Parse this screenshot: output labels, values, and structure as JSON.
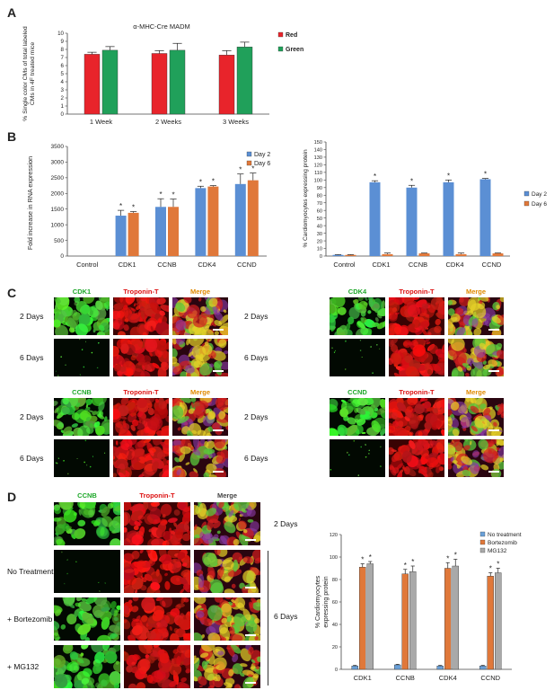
{
  "panels": {
    "a": "A",
    "b": "B",
    "c": "C",
    "d": "D"
  },
  "colors": {
    "red": "#e8242b",
    "green": "#20a05a",
    "blue": "#5b8fd4",
    "orange": "#e0783a",
    "gray": "#a9a9a9",
    "lightblue": "#6aa0d8"
  },
  "chart_a": {
    "type": "bar",
    "title": "α-MHC-Cre MADM",
    "ylabel": "% Single color CMs of total labeled CMs in 4F treated mice",
    "categories": [
      "1 Week",
      "2 Weeks",
      "3 Weeks"
    ],
    "ylim": [
      0,
      10
    ],
    "yticks": [
      "0",
      "1",
      "2",
      "3",
      "4",
      "5",
      "6",
      "7",
      "8",
      "9",
      "10"
    ],
    "series": [
      {
        "name": "Red",
        "values": [
          7.4,
          7.5,
          7.3
        ],
        "errors": [
          0.25,
          0.35,
          0.55
        ]
      },
      {
        "name": "Green",
        "values": [
          7.9,
          7.9,
          8.3
        ],
        "errors": [
          0.45,
          0.85,
          0.6
        ]
      }
    ],
    "legend_position": "right"
  },
  "chart_b1": {
    "type": "bar",
    "ylabel": "Fold increase in RNA expression",
    "categories": [
      "Control",
      "CDK1",
      "CCNB",
      "CDK4",
      "CCND"
    ],
    "ylim": [
      0,
      3500
    ],
    "yticks": [
      "0",
      "500",
      "1000",
      "1500",
      "2000",
      "2500",
      "3000",
      "3500"
    ],
    "series": [
      {
        "name": "Day 2",
        "values": [
          0,
          1290,
          1570,
          2170,
          2300
        ],
        "errors": [
          0,
          170,
          260,
          60,
          320
        ]
      },
      {
        "name": "Day 6",
        "values": [
          0,
          1380,
          1570,
          2220,
          2420
        ],
        "errors": [
          0,
          40,
          250,
          30,
          230
        ]
      }
    ],
    "stars": "*",
    "legend_position": "top-right"
  },
  "chart_b2": {
    "type": "bar",
    "ylabel": "% Cardiomyocytes expressing protein",
    "categories": [
      "Control",
      "CDK1",
      "CCNB",
      "CDK4",
      "CCND"
    ],
    "ylim": [
      0,
      150
    ],
    "yticks": [
      "0",
      "10",
      "20",
      "30",
      "40",
      "50",
      "60",
      "70",
      "80",
      "90",
      "100",
      "110",
      "120",
      "130",
      "140",
      "150"
    ],
    "series": [
      {
        "name": "Day 2",
        "values": [
          1.5,
          97,
          90,
          97,
          101
        ],
        "errors": [
          0.5,
          2,
          3,
          3,
          1
        ]
      },
      {
        "name": "Day 6",
        "values": [
          1.5,
          2.5,
          3.5,
          2.5,
          3.5
        ],
        "errors": [
          0.5,
          1.5,
          0.5,
          1.5,
          0.5
        ]
      }
    ],
    "stars": "*",
    "legend_position": "right"
  },
  "chart_d": {
    "type": "bar",
    "ylabel": "% Cardiomyocytes expressing protein",
    "categories": [
      "CDK1",
      "CCNB",
      "CDK4",
      "CCND"
    ],
    "ylim": [
      0,
      120
    ],
    "yticks": [
      "0",
      "20",
      "40",
      "60",
      "80",
      "100",
      "120"
    ],
    "series": [
      {
        "name": "No treatment",
        "values": [
          3,
          4,
          3,
          3
        ],
        "errors": [
          0.5,
          0.5,
          0.5,
          0.5
        ]
      },
      {
        "name": "Bortezomib",
        "values": [
          91,
          85,
          90,
          83
        ],
        "errors": [
          3,
          4,
          5,
          3
        ]
      },
      {
        "name": "MG132",
        "values": [
          94,
          87,
          92,
          86
        ],
        "errors": [
          2,
          5,
          6,
          4
        ]
      }
    ],
    "stars": "*",
    "legend_position": "top-right"
  },
  "panel_c": {
    "blocks": [
      {
        "headers": [
          "CDK1",
          "Troponin-T",
          "Merge"
        ],
        "rows": [
          "2 Days",
          "6 Days"
        ]
      },
      {
        "headers": [
          "CDK4",
          "Troponin-T",
          "Merge"
        ],
        "rows": [
          "2 Days",
          "6 Days"
        ]
      },
      {
        "headers": [
          "CCNB",
          "Troponin-T",
          "Merge"
        ],
        "rows": [
          "2 Days",
          "6 Days"
        ]
      },
      {
        "headers": [
          "CCND",
          "Troponin-T",
          "Merge"
        ],
        "rows": [
          "2 Days",
          "6 Days"
        ]
      }
    ]
  },
  "panel_d": {
    "headers": [
      "CCNB",
      "Troponin-T",
      "Merge"
    ],
    "rows": [
      "",
      "No Treatment",
      "+ Bortezomib",
      "+ MG132"
    ],
    "side": [
      "2 Days",
      "6 Days"
    ]
  }
}
